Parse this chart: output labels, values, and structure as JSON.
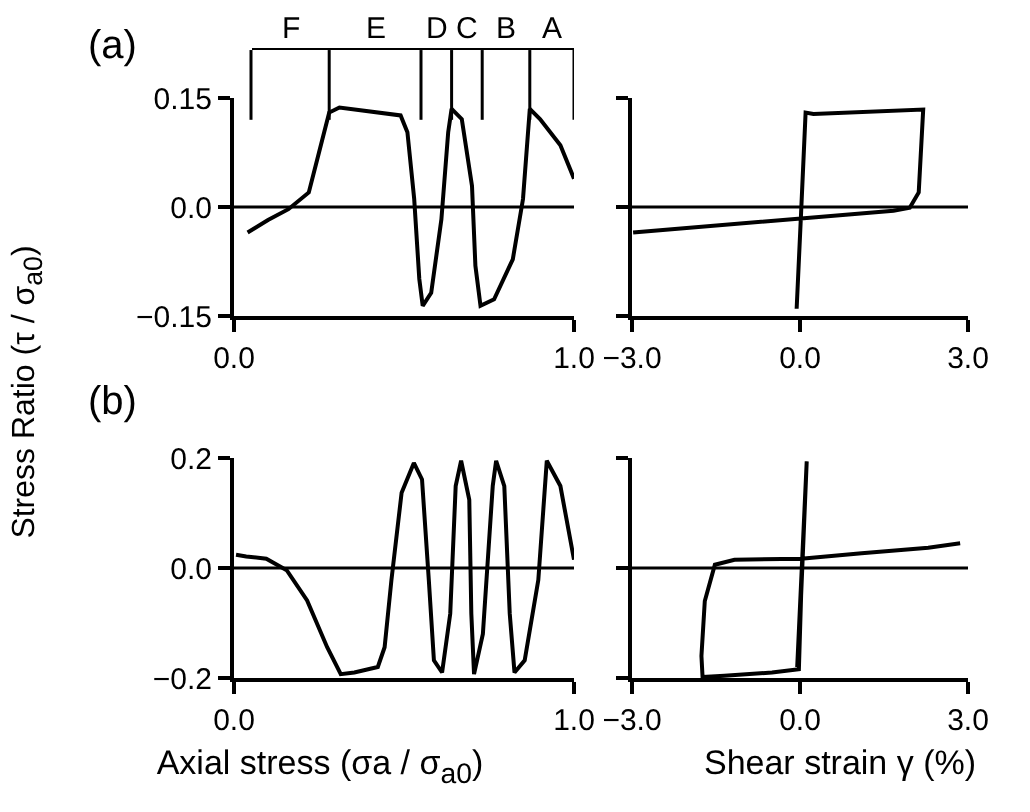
{
  "chart_data": [
    {
      "type": "line",
      "title": "(a)",
      "ylabel": "Stress Ratio (τ / σ$_{a0}$)",
      "color": "#000000",
      "x": [
        0.04,
        0.1,
        0.16,
        0.22,
        0.25,
        0.28,
        0.31,
        0.49,
        0.51,
        0.53,
        0.545,
        0.555,
        0.58,
        0.61,
        0.63,
        0.64,
        0.67,
        0.7,
        0.71,
        0.725,
        0.765,
        0.82,
        0.85,
        0.87,
        0.9,
        0.96,
        1.0
      ],
      "values": [
        -0.035,
        -0.018,
        -0.003,
        0.02,
        0.075,
        0.13,
        0.137,
        0.126,
        0.103,
        0.011,
        -0.099,
        -0.136,
        -0.118,
        -0.017,
        0.103,
        0.135,
        0.121,
        0.029,
        -0.081,
        -0.136,
        -0.127,
        -0.072,
        0.011,
        0.135,
        0.121,
        0.085,
        0.039
      ],
      "xlim": [
        0,
        1
      ],
      "xticks": [
        {
          "value": 0,
          "label": "0.0"
        },
        {
          "value": 1,
          "label": "1.0"
        }
      ],
      "ylim": [
        -0.15,
        0.15
      ],
      "yticks": [
        {
          "value": -0.15,
          "label": "−0.15"
        },
        {
          "value": 0,
          "label": "0.0"
        },
        {
          "value": 0.15,
          "label": "0.15"
        }
      ],
      "ref_lines": [
        {
          "axis": "y",
          "value": 0
        },
        {
          "axis": "x",
          "value": 0.05
        },
        {
          "axis": "x",
          "value": 0.28
        },
        {
          "axis": "x",
          "value": 0.55
        },
        {
          "axis": "x",
          "value": 0.64
        },
        {
          "axis": "x",
          "value": 0.73
        },
        {
          "axis": "x",
          "value": 0.87
        },
        {
          "axis": "x",
          "value": 1.0
        }
      ],
      "annotations": [
        "F",
        "E",
        "D",
        "C",
        "B",
        "A"
      ]
    },
    {
      "type": "line",
      "color": "#000000",
      "tick_labels": "x",
      "x": [
        -0.06,
        0.02,
        0.1,
        0.24,
        2.2,
        2.12,
        1.96,
        1.67,
        -2.98
      ],
      "values": [
        -0.14,
        -0.007,
        0.13,
        0.128,
        0.134,
        0.02,
        -0.001,
        -0.005,
        -0.035
      ],
      "xlim": [
        -3,
        3
      ],
      "xticks": [
        {
          "value": -3,
          "label": "−3.0"
        },
        {
          "value": 0,
          "label": "0.0"
        },
        {
          "value": 3,
          "label": "3.0"
        }
      ],
      "ylim": [
        -0.15,
        0.15
      ],
      "yticks": [
        {
          "value": -0.15,
          "label": null
        },
        {
          "value": 0,
          "label": null
        },
        {
          "value": 0.15,
          "label": null
        }
      ],
      "ref_lines": [
        {
          "axis": "y",
          "value": 0
        }
      ]
    },
    {
      "type": "line",
      "title": "(b)",
      "xlabel": "Axial stress (σa / σ$_{a0}$)",
      "color": "#000000",
      "x": [
        0.006,
        0.036,
        0.095,
        0.155,
        0.215,
        0.274,
        0.314,
        0.354,
        0.423,
        0.443,
        0.463,
        0.493,
        0.529,
        0.553,
        0.573,
        0.588,
        0.612,
        0.636,
        0.652,
        0.668,
        0.692,
        0.698,
        0.706,
        0.732,
        0.761,
        0.771,
        0.795,
        0.811,
        0.825,
        0.855,
        0.895,
        0.92,
        0.96,
        1.0
      ],
      "values": [
        0.024,
        0.021,
        0.017,
        -0.004,
        -0.059,
        -0.144,
        -0.193,
        -0.19,
        -0.18,
        -0.144,
        -0.022,
        0.137,
        0.191,
        0.161,
        -0.022,
        -0.168,
        -0.19,
        -0.083,
        0.149,
        0.195,
        0.124,
        -0.083,
        -0.193,
        -0.12,
        0.149,
        0.195,
        0.149,
        -0.083,
        -0.19,
        -0.168,
        -0.022,
        0.195,
        0.149,
        0.015
      ],
      "xlim": [
        0,
        1
      ],
      "xticks": [
        {
          "value": 0,
          "label": "0.0"
        },
        {
          "value": 1,
          "label": "1.0"
        }
      ],
      "ylim": [
        -0.2,
        0.2
      ],
      "yticks": [
        {
          "value": -0.2,
          "label": "−0.2"
        },
        {
          "value": 0,
          "label": "0.0"
        },
        {
          "value": 0.2,
          "label": "0.2"
        }
      ],
      "ref_lines": [
        {
          "axis": "y",
          "value": 0
        }
      ]
    },
    {
      "type": "line",
      "xlabel": "Shear strain γ (%)",
      "color": "#000000",
      "tick_labels": "x",
      "x": [
        -0.05,
        0.12,
        0.02,
        -0.02,
        -0.5,
        -1.35,
        -1.74,
        -1.76,
        -1.7,
        -1.52,
        -1.17,
        0.02,
        1.1,
        2.29,
        2.86
      ],
      "values": [
        -0.18,
        0.194,
        -0.05,
        -0.184,
        -0.19,
        -0.196,
        -0.198,
        -0.16,
        -0.06,
        0.006,
        0.015,
        0.017,
        0.027,
        0.037,
        0.045
      ],
      "xlim": [
        -3,
        3
      ],
      "xticks": [
        {
          "value": -3,
          "label": "−3.0"
        },
        {
          "value": 0,
          "label": "0.0"
        },
        {
          "value": 3,
          "label": "3.0"
        }
      ],
      "ylim": [
        -0.2,
        0.2
      ],
      "yticks": [
        {
          "value": -0.2,
          "label": null
        },
        {
          "value": 0,
          "label": null
        },
        {
          "value": 0.2,
          "label": null
        }
      ],
      "ref_lines": [
        {
          "axis": "y",
          "value": 0
        }
      ]
    }
  ]
}
